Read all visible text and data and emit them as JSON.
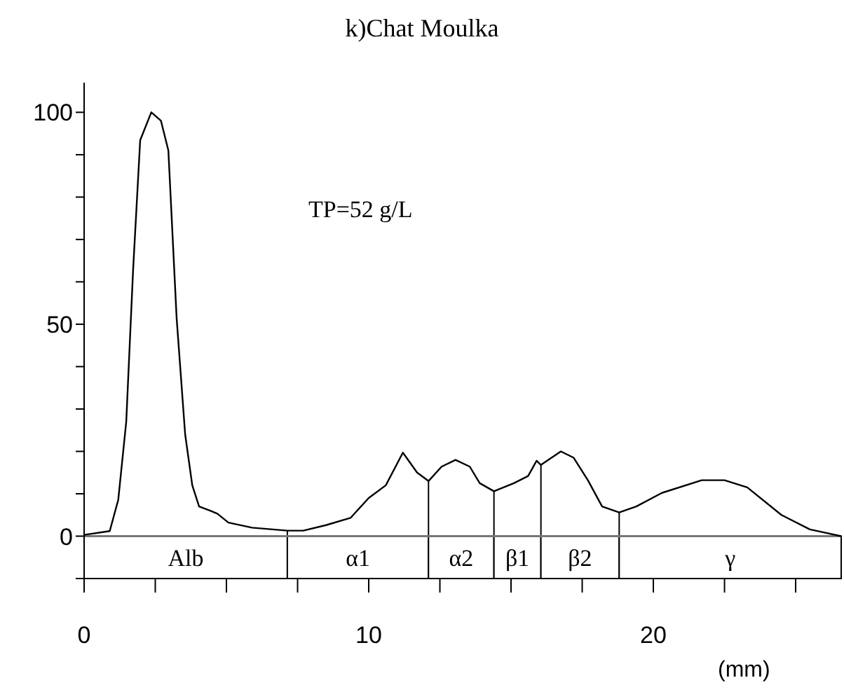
{
  "chart_data": {
    "type": "line",
    "title": "k)Chat Moulka",
    "xlabel": "(mm)",
    "annotations": [
      "TP=52 g/L"
    ],
    "x": [
      0,
      0.9,
      1.2,
      1.48,
      1.72,
      1.97,
      2.36,
      2.7,
      2.96,
      3.25,
      3.55,
      3.8,
      4.04,
      4.43,
      4.68,
      5.07,
      5.9,
      7.14,
      7.7,
      8.5,
      9.36,
      10.0,
      10.6,
      11.2,
      11.7,
      12.1,
      12.56,
      13.05,
      13.55,
      13.9,
      14.4,
      15.1,
      15.6,
      15.9,
      16.05,
      16.75,
      17.2,
      17.7,
      18.2,
      18.8,
      19.4,
      20.3,
      21.7,
      22.5,
      23.3,
      24.5,
      25.5,
      26.6
    ],
    "series": [
      {
        "color": "#000000",
        "values": [
          0.3,
          1.2,
          8.6,
          27,
          62.7,
          93.4,
          100,
          98,
          91,
          51.5,
          24,
          12,
          7,
          6,
          5.3,
          3.2,
          2,
          1.3,
          1.3,
          2.6,
          4.3,
          9,
          12,
          19.7,
          15,
          13,
          16.4,
          18,
          16.4,
          12.5,
          10.6,
          12.5,
          14.2,
          17.8,
          16.8,
          20,
          18.5,
          13.2,
          7,
          5.6,
          7,
          10.2,
          13.2,
          13.2,
          11.5,
          5,
          1.6,
          0
        ]
      }
    ],
    "xlim": [
      0,
      26.6
    ],
    "ylim": [
      -10,
      107
    ],
    "xticks": [
      0,
      {
        "value": 2.5,
        "label": null
      },
      {
        "value": 5,
        "label": null
      },
      {
        "value": 7.5,
        "label": null
      },
      10,
      {
        "value": 12.5,
        "label": null
      },
      {
        "value": 15,
        "label": null
      },
      {
        "value": 17.5,
        "label": null
      },
      20,
      {
        "value": 22.5,
        "label": null
      },
      {
        "value": 25,
        "label": null
      }
    ],
    "yticks": [
      {
        "value": -10,
        "label": null
      },
      0,
      {
        "value": 10,
        "label": null
      },
      {
        "value": 20,
        "label": null
      },
      {
        "value": 30,
        "label": null
      },
      {
        "value": 40,
        "label": null
      },
      50,
      {
        "value": 60,
        "label": null
      },
      {
        "value": 70,
        "label": null
      },
      {
        "value": 80,
        "label": null
      },
      {
        "value": 90,
        "label": null
      },
      100
    ],
    "bands": [
      {
        "axis": "x",
        "from": 0,
        "to": 7.14,
        "label": "Alb"
      },
      {
        "axis": "x",
        "from": 7.14,
        "to": 12.1,
        "label": "α1"
      },
      {
        "axis": "x",
        "from": 12.1,
        "to": 14.4,
        "label": "α2"
      },
      {
        "axis": "x",
        "from": 14.4,
        "to": 16.05,
        "label": "β1"
      },
      {
        "axis": "x",
        "from": 16.05,
        "to": 18.8,
        "label": "β2"
      },
      {
        "axis": "x",
        "from": 18.8,
        "to": 26.6,
        "label": "γ"
      }
    ],
    "ref_lines": [
      {
        "axis": "y",
        "value": 0,
        "color": "#777777"
      }
    ],
    "grid": false,
    "legend": false,
    "marker": "none",
    "line_style": "solid"
  }
}
